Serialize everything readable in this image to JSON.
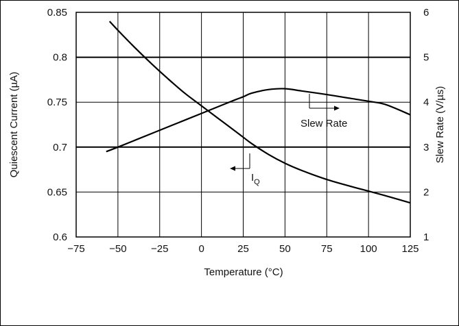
{
  "chart_data": {
    "type": "line",
    "title": "",
    "xlabel": "Temperature (°C)",
    "ylabel_left": "Quiescent Current (µA)",
    "ylabel_right": "Slew Rate (V/µs)",
    "x_ticks": [
      "−75",
      "−50",
      "−25",
      "0",
      "25",
      "50",
      "75",
      "100",
      "125"
    ],
    "y_left_ticks": [
      "0.85",
      "0.8",
      "0.75",
      "0.7",
      "0.65",
      "0.6"
    ],
    "y_right_ticks": [
      "6",
      "5",
      "4",
      "3",
      "2",
      "1"
    ],
    "xlim": [
      -75,
      125
    ],
    "ylim_left": [
      0.6,
      0.85
    ],
    "ylim_right": [
      1,
      6
    ],
    "grid": true,
    "series": [
      {
        "name": "IQ",
        "axis": "left",
        "x": [
          -55,
          -50,
          -40,
          -30,
          -20,
          -10,
          0,
          10,
          20,
          25,
          30,
          40,
          50,
          60,
          75,
          90,
          100,
          110,
          125
        ],
        "y": [
          0.84,
          0.83,
          0.811,
          0.793,
          0.776,
          0.76,
          0.746,
          0.732,
          0.718,
          0.711,
          0.704,
          0.692,
          0.682,
          0.674,
          0.664,
          0.656,
          0.651,
          0.646,
          0.638
        ]
      },
      {
        "name": "Slew Rate",
        "axis": "right",
        "x": [
          -57,
          -50,
          -40,
          -30,
          -20,
          -10,
          0,
          10,
          20,
          25,
          30,
          40,
          50,
          60,
          75,
          90,
          100,
          110,
          125
        ],
        "y": [
          2.9,
          3.0,
          3.15,
          3.3,
          3.45,
          3.6,
          3.75,
          3.9,
          4.05,
          4.12,
          4.2,
          4.28,
          4.3,
          4.25,
          4.17,
          4.08,
          4.02,
          3.95,
          3.72
        ]
      }
    ],
    "annotations": [
      {
        "text": "I",
        "sub": "Q",
        "series": "IQ",
        "arrow": "left"
      },
      {
        "text": "Slew Rate",
        "series": "Slew Rate",
        "arrow": "right"
      }
    ]
  }
}
